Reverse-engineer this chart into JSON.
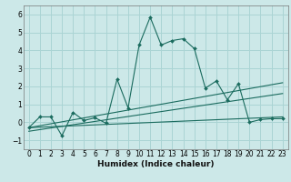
{
  "title": "",
  "xlabel": "Humidex (Indice chaleur)",
  "ylabel": "",
  "bg_color": "#cce8e8",
  "grid_color": "#aad4d4",
  "line_color": "#1a6b5e",
  "xlim": [
    -0.5,
    23.5
  ],
  "ylim": [
    -1.5,
    6.5
  ],
  "xticks": [
    0,
    1,
    2,
    3,
    4,
    5,
    6,
    7,
    8,
    9,
    10,
    11,
    12,
    13,
    14,
    15,
    16,
    17,
    18,
    19,
    20,
    21,
    22,
    23
  ],
  "yticks": [
    -1,
    0,
    1,
    2,
    3,
    4,
    5,
    6
  ],
  "series1_x": [
    0,
    1,
    2,
    3,
    4,
    5,
    6,
    7,
    8,
    9,
    10,
    11,
    12,
    13,
    14,
    15,
    16,
    17,
    18,
    19,
    20,
    21,
    22,
    23
  ],
  "series1_y": [
    -0.3,
    0.3,
    0.3,
    -0.75,
    0.55,
    0.1,
    0.25,
    -0.05,
    2.4,
    0.8,
    4.3,
    5.85,
    4.3,
    4.55,
    4.65,
    4.1,
    1.9,
    2.3,
    1.25,
    2.15,
    0.0,
    0.15,
    0.2,
    0.2
  ],
  "series2_x": [
    0,
    23
  ],
  "series2_y": [
    -0.3,
    0.3
  ],
  "series3_x": [
    0,
    23
  ],
  "series3_y": [
    -0.3,
    2.2
  ],
  "series4_x": [
    0,
    23
  ],
  "series4_y": [
    -0.5,
    1.6
  ]
}
